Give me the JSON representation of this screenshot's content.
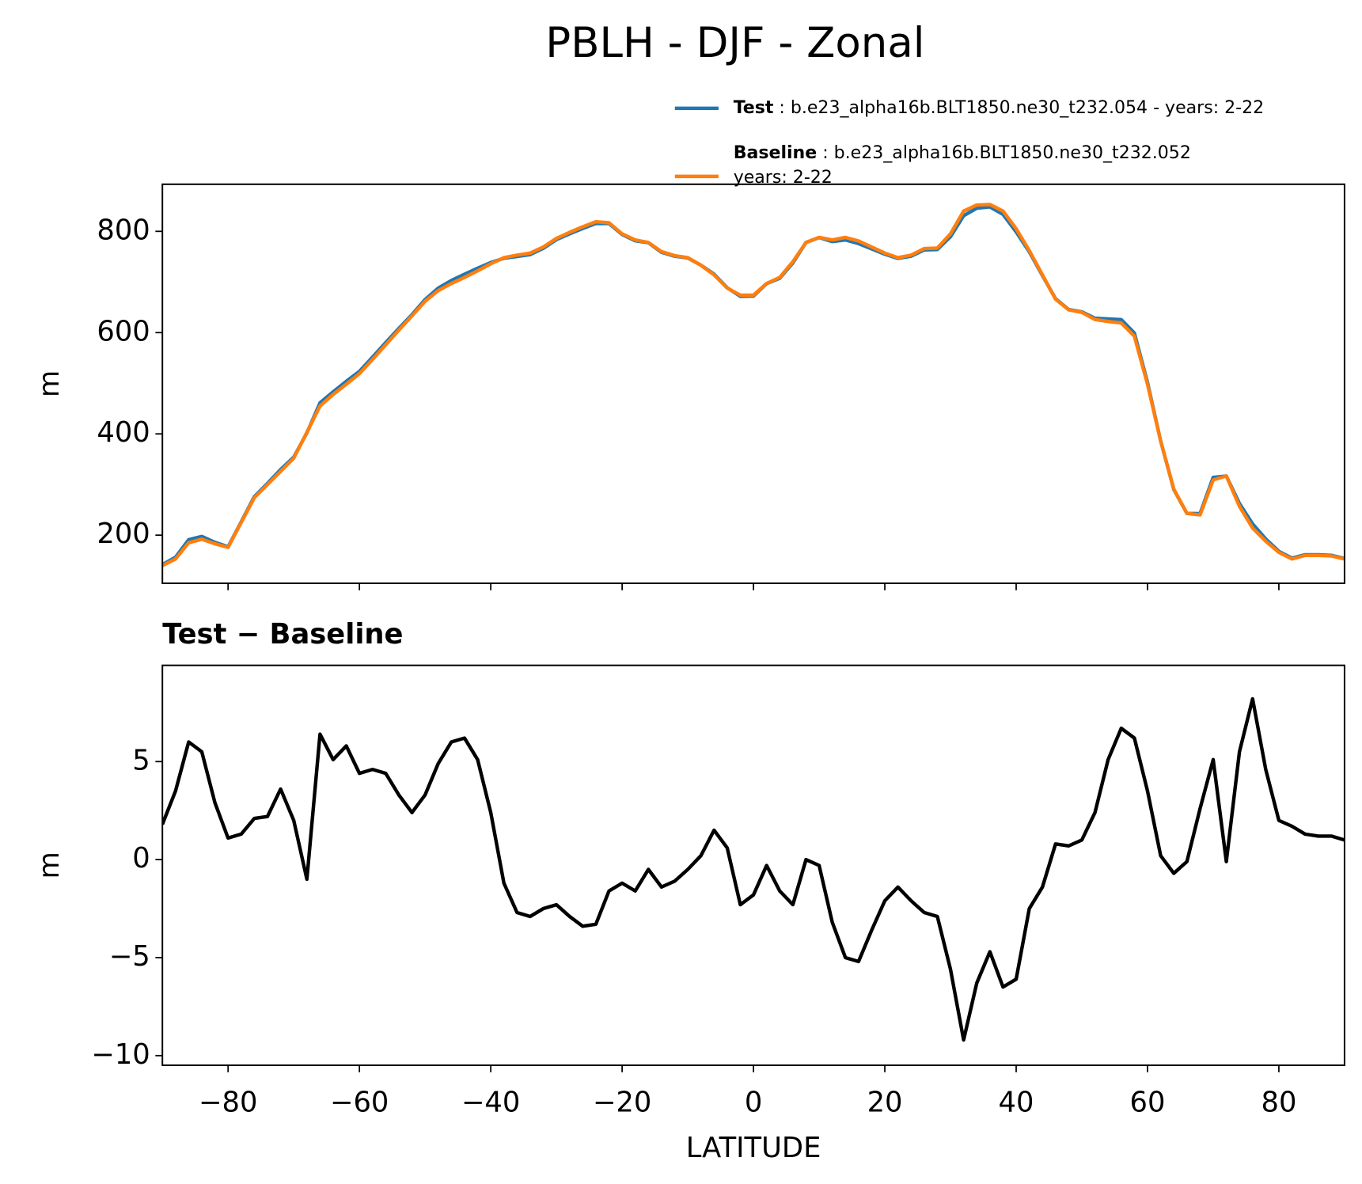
{
  "title": "PBLH - DJF - Zonal",
  "chart_data": [
    {
      "type": "line",
      "ylabel": "m",
      "x": [
        -90,
        -88,
        -86,
        -84,
        -82,
        -80,
        -78,
        -76,
        -74,
        -72,
        -70,
        -68,
        -66,
        -64,
        -62,
        -60,
        -58,
        -56,
        -54,
        -52,
        -50,
        -48,
        -46,
        -44,
        -42,
        -40,
        -38,
        -36,
        -34,
        -32,
        -30,
        -28,
        -26,
        -24,
        -22,
        -20,
        -18,
        -16,
        -14,
        -12,
        -10,
        -8,
        -6,
        -4,
        -2,
        0,
        2,
        4,
        6,
        8,
        10,
        12,
        14,
        16,
        18,
        20,
        22,
        24,
        26,
        28,
        30,
        32,
        34,
        36,
        38,
        40,
        42,
        44,
        46,
        48,
        50,
        52,
        54,
        56,
        58,
        60,
        62,
        64,
        66,
        68,
        70,
        72,
        74,
        76,
        78,
        80,
        82,
        84,
        86,
        88,
        90
      ],
      "series": [
        {
          "name": "Test",
          "label": [
            " : b.e23_alpha16b.BLT1850.ne30_t232.054 - years: 2-22"
          ],
          "color": "#1f77b4",
          "values": [
            141.8,
            156.5,
            191.0,
            197.5,
            185.9,
            177.1,
            226.3,
            276.1,
            302.2,
            329.6,
            354.0,
            402.0,
            461.4,
            483.1,
            503.8,
            523.4,
            551.6,
            580.4,
            608.3,
            635.4,
            665.3,
            687.9,
            703.0,
            715.2,
            727.1,
            738.4,
            746.8,
            750.3,
            754.1,
            766.5,
            783.7,
            795.1,
            805.6,
            815.7,
            815.4,
            793.8,
            781.4,
            777.5,
            758.6,
            750.9,
            747.5,
            733.2,
            715.5,
            688.6,
            671.7,
            672.2,
            696.7,
            707.4,
            737.7,
            778.0,
            787.7,
            779.8,
            783.0,
            775.8,
            765.4,
            754.9,
            746.6,
            750.9,
            763.3,
            764.1,
            789.4,
            830.8,
            845.7,
            848.3,
            833.5,
            798.9,
            759.5,
            712.6,
            666.8,
            645.7,
            641.0,
            628.4,
            627.1,
            625.7,
            599.2,
            501.5,
            386.2,
            290.3,
            242.9,
            242.6,
            314.1,
            316.9,
            262.5,
            222.2,
            192.6,
            168.0,
            154.7,
            161.3,
            161.2,
            160.2,
            154.0
          ]
        },
        {
          "name": "Baseline",
          "label": [
            " : b.e23_alpha16b.BLT1850.ne30_t232.052",
            "years: 2-22"
          ],
          "color": "#ff7f0e",
          "values": [
            140,
            153,
            185,
            192,
            183,
            176,
            225,
            274,
            300,
            326,
            352,
            403,
            455,
            478,
            498,
            519,
            547,
            576,
            605,
            633,
            662,
            683,
            697,
            709,
            722,
            736,
            748,
            753,
            757,
            769,
            786,
            798,
            809,
            819,
            817,
            795,
            783,
            778,
            760,
            752,
            748,
            733,
            714,
            688,
            674,
            674,
            697,
            709,
            740,
            778,
            788,
            783,
            788,
            781,
            769,
            757,
            748,
            753,
            766,
            767,
            795,
            840,
            852,
            853,
            840,
            805,
            762,
            714,
            666,
            645,
            640,
            626,
            622,
            619,
            593,
            498,
            386,
            291,
            243,
            240,
            309,
            317,
            257,
            214,
            188,
            166,
            153,
            160,
            160,
            159,
            153
          ]
        }
      ],
      "xlim": [
        -90,
        90
      ],
      "xticks": [
        -80,
        -60,
        -40,
        -20,
        0,
        20,
        40,
        60,
        80
      ],
      "ylim": [
        105,
        893
      ],
      "yticks": [
        200,
        400,
        600,
        800
      ]
    },
    {
      "type": "line",
      "title": "Test − Baseline",
      "xlabel": "LATITUDE",
      "ylabel": "m",
      "x": [
        -90,
        -88,
        -86,
        -84,
        -82,
        -80,
        -78,
        -76,
        -74,
        -72,
        -70,
        -68,
        -66,
        -64,
        -62,
        -60,
        -58,
        -56,
        -54,
        -52,
        -50,
        -48,
        -46,
        -44,
        -42,
        -40,
        -38,
        -36,
        -34,
        -32,
        -30,
        -28,
        -26,
        -24,
        -22,
        -20,
        -18,
        -16,
        -14,
        -12,
        -10,
        -8,
        -6,
        -4,
        -2,
        0,
        2,
        4,
        6,
        8,
        10,
        12,
        14,
        16,
        18,
        20,
        22,
        24,
        26,
        28,
        30,
        32,
        34,
        36,
        38,
        40,
        42,
        44,
        46,
        48,
        50,
        52,
        54,
        56,
        58,
        60,
        62,
        64,
        66,
        68,
        70,
        72,
        74,
        76,
        78,
        80,
        82,
        84,
        86,
        88,
        90
      ],
      "series": [
        {
          "color": "#000000",
          "values": [
            1.8,
            3.5,
            6.0,
            5.5,
            2.9,
            1.1,
            1.3,
            2.1,
            2.2,
            3.6,
            2.0,
            -1.0,
            6.4,
            5.1,
            5.8,
            4.4,
            4.6,
            4.4,
            3.3,
            2.4,
            3.3,
            4.9,
            6.0,
            6.2,
            5.1,
            2.4,
            -1.2,
            -2.7,
            -2.9,
            -2.5,
            -2.3,
            -2.9,
            -3.4,
            -3.3,
            -1.6,
            -1.2,
            -1.6,
            -0.5,
            -1.4,
            -1.1,
            -0.5,
            0.2,
            1.5,
            0.6,
            -2.3,
            -1.8,
            -0.3,
            -1.6,
            -2.3,
            0.0,
            -0.3,
            -3.2,
            -5.0,
            -5.2,
            -3.6,
            -2.1,
            -1.4,
            -2.1,
            -2.7,
            -2.9,
            -5.6,
            -9.2,
            -6.3,
            -4.7,
            -6.5,
            -6.1,
            -2.5,
            -1.4,
            0.8,
            0.7,
            1.0,
            2.4,
            5.1,
            6.7,
            6.2,
            3.5,
            0.2,
            -0.7,
            -0.1,
            2.6,
            5.1,
            -0.1,
            5.5,
            8.2,
            4.6,
            2.0,
            1.7,
            1.3,
            1.2,
            1.2,
            1.0
          ]
        }
      ],
      "xlim": [
        -90,
        90
      ],
      "xticks": [
        {
          "value": -80,
          "label": "−80"
        },
        {
          "value": -60,
          "label": "−60"
        },
        {
          "value": -40,
          "label": "−40"
        },
        {
          "value": -20,
          "label": "−20"
        },
        0,
        20,
        40,
        60,
        80
      ],
      "ylim": [
        -10.49,
        9.91
      ],
      "yticks": [
        {
          "value": -10,
          "label": "−10"
        },
        {
          "value": -5,
          "label": "−5"
        },
        0,
        5
      ]
    }
  ]
}
